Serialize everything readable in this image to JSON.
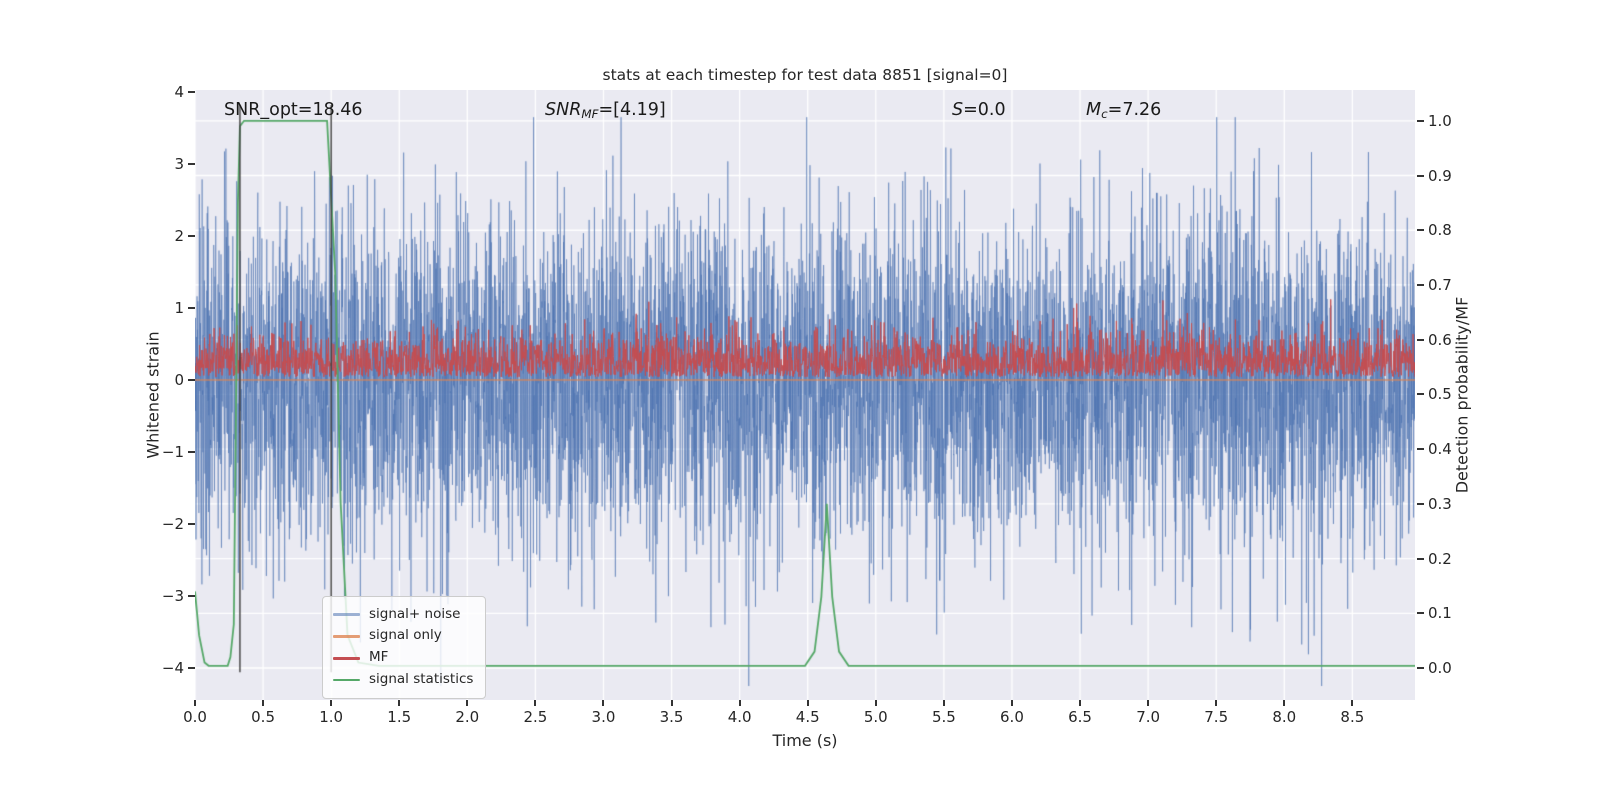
{
  "title": "stats at each timestep for test data 8851 [signal=0]",
  "annotations": [
    {
      "name": "snr-opt",
      "segments": [
        {
          "t": "SNR_opt=18.46",
          "s": "n"
        }
      ]
    },
    {
      "name": "snr-mf",
      "segments": [
        {
          "t": "SNR",
          "s": "i"
        },
        {
          "t": "MF",
          "s": "is"
        },
        {
          "t": "=[4.19]",
          "s": "n"
        }
      ]
    },
    {
      "name": "s-value",
      "segments": [
        {
          "t": "S",
          "s": "i"
        },
        {
          "t": "=0.0",
          "s": "n"
        }
      ]
    },
    {
      "name": "mc-value",
      "segments": [
        {
          "t": "M",
          "s": "i"
        },
        {
          "t": "c",
          "s": "is"
        },
        {
          "t": "=7.26",
          "s": "n"
        }
      ]
    }
  ],
  "axes": {
    "x": {
      "label": "Time (s)",
      "ticks": [
        {
          "v": 0.0,
          "label": "0.0"
        },
        {
          "v": 0.5,
          "label": "0.5"
        },
        {
          "v": 1.0,
          "label": "1.0"
        },
        {
          "v": 1.5,
          "label": "1.5"
        },
        {
          "v": 2.0,
          "label": "2.0"
        },
        {
          "v": 2.5,
          "label": "2.5"
        },
        {
          "v": 3.0,
          "label": "3.0"
        },
        {
          "v": 3.5,
          "label": "3.5"
        },
        {
          "v": 4.0,
          "label": "4.0"
        },
        {
          "v": 4.5,
          "label": "4.5"
        },
        {
          "v": 5.0,
          "label": "5.0"
        },
        {
          "v": 5.5,
          "label": "5.5"
        },
        {
          "v": 6.0,
          "label": "6.0"
        },
        {
          "v": 6.5,
          "label": "6.5"
        },
        {
          "v": 7.0,
          "label": "7.0"
        },
        {
          "v": 7.5,
          "label": "7.5"
        },
        {
          "v": 8.0,
          "label": "8.0"
        },
        {
          "v": 8.5,
          "label": "8.5"
        }
      ]
    },
    "y_left": {
      "label": "Whitened strain",
      "ticks": [
        {
          "v": 4,
          "label": "4"
        },
        {
          "v": 3,
          "label": "3"
        },
        {
          "v": 2,
          "label": "2"
        },
        {
          "v": 1,
          "label": "1"
        },
        {
          "v": 0,
          "label": "0"
        },
        {
          "v": -1,
          "label": "−1"
        },
        {
          "v": -2,
          "label": "−2"
        },
        {
          "v": -3,
          "label": "−3"
        },
        {
          "v": -4,
          "label": "−4"
        }
      ]
    },
    "y_right": {
      "label": "Detection probability/MF",
      "ticks": [
        {
          "v": 1.0,
          "label": "1.0"
        },
        {
          "v": 0.9,
          "label": "0.9"
        },
        {
          "v": 0.8,
          "label": "0.8"
        },
        {
          "v": 0.7,
          "label": "0.7"
        },
        {
          "v": 0.6,
          "label": "0.6"
        },
        {
          "v": 0.5,
          "label": "0.5"
        },
        {
          "v": 0.4,
          "label": "0.4"
        },
        {
          "v": 0.3,
          "label": "0.3"
        },
        {
          "v": 0.2,
          "label": "0.2"
        },
        {
          "v": 0.1,
          "label": "0.1"
        },
        {
          "v": 0.0,
          "label": "0.0"
        }
      ]
    }
  },
  "legend": {
    "position": "lower left",
    "items": [
      "signal+ noise",
      "signal only",
      "MF",
      "signal statistics"
    ]
  },
  "chart_data": {
    "type": "line",
    "title": "stats at each timestep for test data 8851 [signal=0]",
    "xlabel": "Time (s)",
    "ylabel_left": "Whitened strain",
    "ylabel_right": "Detection probability/MF",
    "xlim": [
      0,
      8.96
    ],
    "ylim_left": [
      -4.44,
      4.03
    ],
    "ylim_right": [
      0.0,
      1.0
    ],
    "right_axis_mapping": "right 0.0 aligns with left −4.0, right 1.0 aligns with left 3.6",
    "grid": true,
    "plot_bg": "#eaeaf2",
    "grid_color": "#ffffff",
    "stats": {
      "test_data_id": 8851,
      "signal": 0,
      "SNR_opt": 18.46,
      "SNR_MF": [
        4.19
      ],
      "S": 0.0,
      "M_c": 7.26
    },
    "vlines": {
      "x": [
        0.33,
        1.0
      ],
      "color": "#3f3f3f",
      "y_span_left": [
        -4.06,
        3.82
      ]
    },
    "series": [
      {
        "name": "signal+ noise",
        "axis": "left",
        "color": "#4C72B0",
        "alpha": 0.55,
        "kind": "gaussian_noise",
        "mean": 0,
        "std": 1.15,
        "n": 6000,
        "clip": [
          -4.25,
          3.65
        ]
      },
      {
        "name": "signal only",
        "axis": "left",
        "color": "#DD8452",
        "alpha": 0.8,
        "kind": "constant",
        "value": 0.0
      },
      {
        "name": "MF",
        "axis": "left",
        "color": "#C44E52",
        "alpha": 1.0,
        "kind": "abs_gaussian_noise",
        "base": 0.04,
        "scale": 0.3,
        "n": 3200,
        "clip_max": 1.12
      },
      {
        "name": "signal statistics",
        "axis": "right",
        "color": "#55A868",
        "alpha": 1.0,
        "kind": "keypoints",
        "points": [
          [
            0.0,
            0.14
          ],
          [
            0.03,
            0.06
          ],
          [
            0.07,
            0.01
          ],
          [
            0.1,
            0.004
          ],
          [
            0.24,
            0.004
          ],
          [
            0.26,
            0.02
          ],
          [
            0.285,
            0.08
          ],
          [
            0.3,
            0.45
          ],
          [
            0.315,
            0.85
          ],
          [
            0.33,
            0.99
          ],
          [
            0.36,
            1.0
          ],
          [
            0.97,
            1.0
          ],
          [
            1.03,
            0.72
          ],
          [
            1.07,
            0.3
          ],
          [
            1.12,
            0.06
          ],
          [
            1.2,
            0.01
          ],
          [
            1.35,
            0.004
          ],
          [
            4.48,
            0.004
          ],
          [
            4.55,
            0.03
          ],
          [
            4.6,
            0.13
          ],
          [
            4.64,
            0.3
          ],
          [
            4.68,
            0.13
          ],
          [
            4.73,
            0.03
          ],
          [
            4.8,
            0.004
          ],
          [
            8.96,
            0.004
          ]
        ]
      }
    ]
  }
}
